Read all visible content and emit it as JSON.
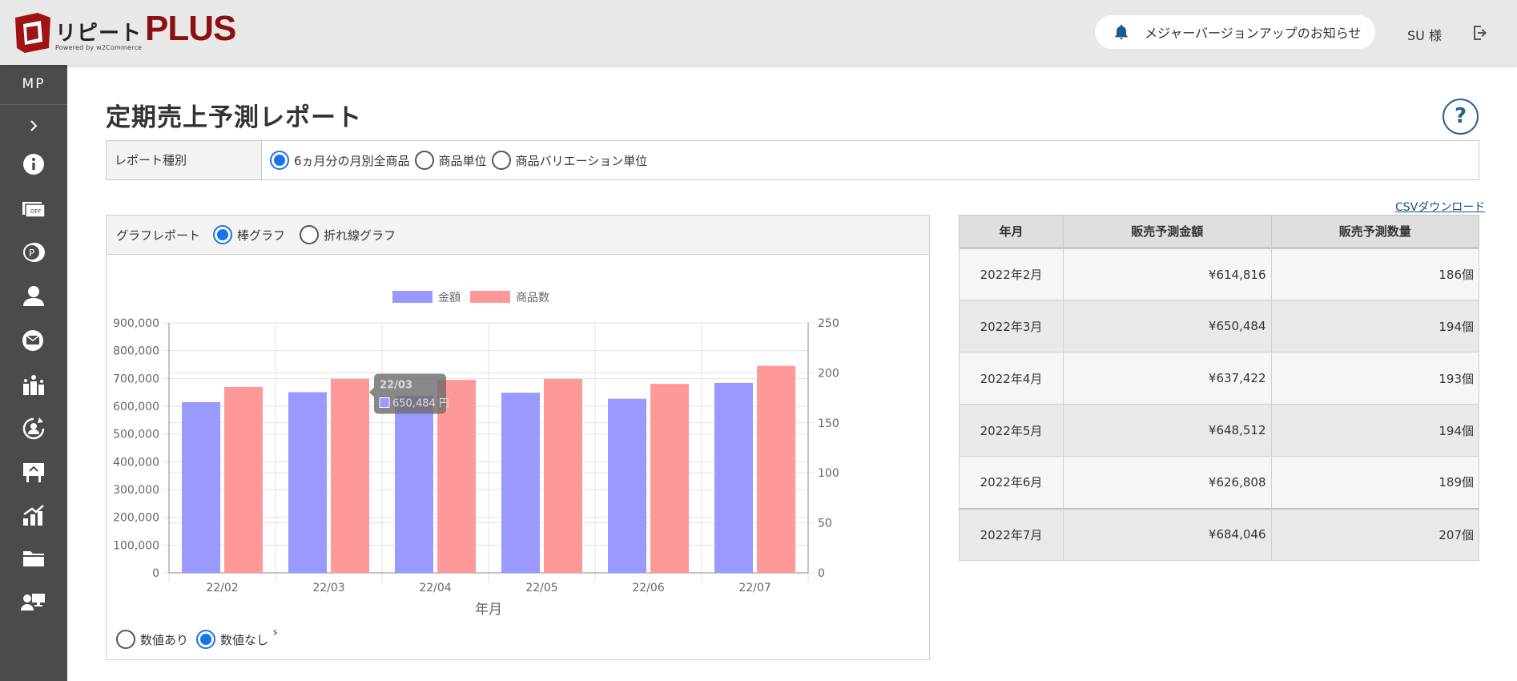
{
  "header": {
    "logo_jp": "リピート",
    "logo_plus": "PLUS",
    "logo_powered": "Powered by w2Commerce",
    "notice": "メジャーバージョンアップのお知らせ",
    "user": "SU 様"
  },
  "sidebar": {
    "title": "MP",
    "icons": [
      "chevron-right-icon",
      "info-icon",
      "coupon-icon",
      "point-icon",
      "user-icon",
      "mail-icon",
      "campaign-icon",
      "refresh-user-icon",
      "signboard-icon",
      "report-icon",
      "folder-icon",
      "admin-icon"
    ]
  },
  "page": {
    "title": "定期売上予測レポート",
    "help": "?",
    "report_type_label": "レポート種別",
    "report_options": [
      "6ヵ月分の月別全商品",
      "商品単位",
      "商品バリエーション単位"
    ],
    "report_selected": 0,
    "csv_link": "CSVダウンロード"
  },
  "chart_panel": {
    "label": "グラフレポート",
    "options": [
      "棒グラフ",
      "折れ線グラフ"
    ],
    "selected": 0,
    "value_options": [
      "数値あり",
      "数値なし"
    ],
    "value_selected": 1,
    "value_sup": "s"
  },
  "chart_data": {
    "type": "bar",
    "categories": [
      "22/02",
      "22/03",
      "22/04",
      "22/05",
      "22/06",
      "22/07"
    ],
    "series": [
      {
        "name": "金額",
        "axis": "left",
        "color": "#9999ff",
        "values": [
          614816,
          650484,
          637422,
          648512,
          626808,
          684046
        ]
      },
      {
        "name": "商品数",
        "axis": "right",
        "color": "#ff9999",
        "values": [
          186,
          194,
          193,
          194,
          189,
          207
        ]
      }
    ],
    "xlabel": "年月",
    "ylim_left": [
      0,
      900000
    ],
    "ylim_right": [
      0,
      250
    ],
    "yticks_left": [
      "0",
      "100,000",
      "200,000",
      "300,000",
      "400,000",
      "500,000",
      "600,000",
      "700,000",
      "800,000",
      "900,000"
    ],
    "yticks_right": [
      "0",
      "50",
      "100",
      "150",
      "200",
      "250"
    ],
    "legend": "top-center",
    "grid": true,
    "tooltip": {
      "title": "22/03",
      "text": "650,484 円"
    }
  },
  "table": {
    "headers": [
      "年月",
      "販売予測金額",
      "販売予測数量"
    ],
    "rows": [
      [
        "2022年2月",
        "¥614,816",
        "186個"
      ],
      [
        "2022年3月",
        "¥650,484",
        "194個"
      ],
      [
        "2022年4月",
        "¥637,422",
        "193個"
      ],
      [
        "2022年5月",
        "¥648,512",
        "194個"
      ],
      [
        "2022年6月",
        "¥626,808",
        "189個"
      ],
      [
        "2022年7月",
        "¥684,046",
        "207個"
      ]
    ]
  }
}
